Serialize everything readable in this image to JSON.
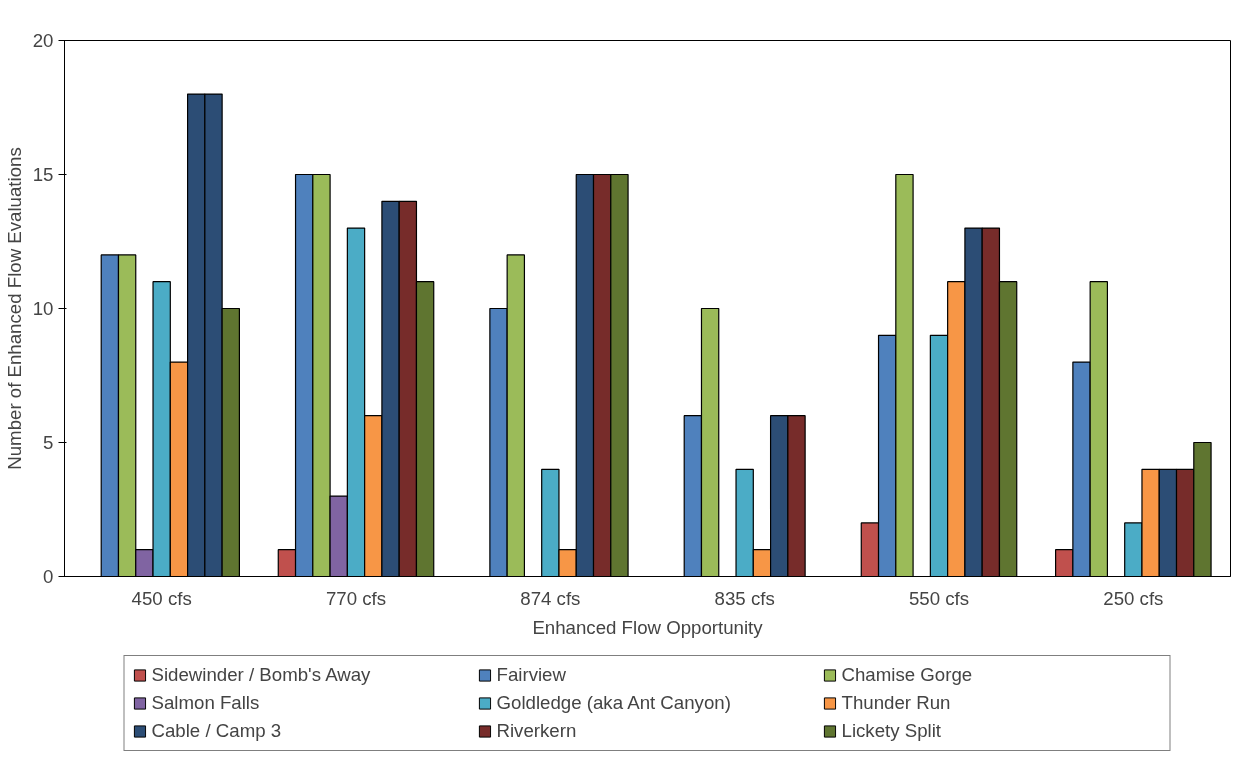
{
  "chart_data": {
    "type": "bar",
    "xlabel": "Enhanced Flow Opportunity",
    "ylabel": "Number of Enhanced Flow Evaluations",
    "categories": [
      "450 cfs",
      "770 cfs",
      "874 cfs",
      "835 cfs",
      "550 cfs",
      "250 cfs"
    ],
    "ylim": [
      0,
      20
    ],
    "yticks": [
      0,
      5,
      10,
      15,
      20
    ],
    "grid": false,
    "legend": "bottom",
    "series": [
      {
        "name": "Sidewinder / Bomb's Away",
        "color": "#c0504d",
        "values": [
          null,
          1,
          null,
          null,
          2,
          1
        ]
      },
      {
        "name": "Fairview",
        "color": "#4f81bd",
        "values": [
          12,
          15,
          10,
          6,
          9,
          8
        ]
      },
      {
        "name": "Chamise Gorge",
        "color": "#9bbb59",
        "values": [
          12,
          15,
          12,
          10,
          15,
          11
        ]
      },
      {
        "name": "Salmon Falls",
        "color": "#8064a2",
        "values": [
          1,
          3,
          null,
          null,
          null,
          null
        ]
      },
      {
        "name": "Goldledge (aka Ant Canyon)",
        "color": "#4bacc6",
        "values": [
          11,
          13,
          4,
          4,
          9,
          2
        ]
      },
      {
        "name": "Thunder Run",
        "color": "#f79646",
        "values": [
          8,
          6,
          1,
          1,
          11,
          4
        ]
      },
      {
        "name": "Cable / Camp 3",
        "color": "#2c4d75",
        "values": [
          18,
          14,
          15,
          6,
          13,
          4
        ]
      },
      {
        "name": "Riverkern",
        "color": "#772c2a",
        "colors": [
          "#2c4d75",
          "#772c2a",
          "#772c2a",
          "#772c2a",
          "#772c2a",
          "#772c2a"
        ],
        "values": [
          18,
          14,
          15,
          6,
          13,
          4
        ]
      },
      {
        "name": "Lickety Split",
        "color": "#5f7530",
        "values": [
          10,
          11,
          15,
          null,
          11,
          5
        ]
      }
    ]
  }
}
